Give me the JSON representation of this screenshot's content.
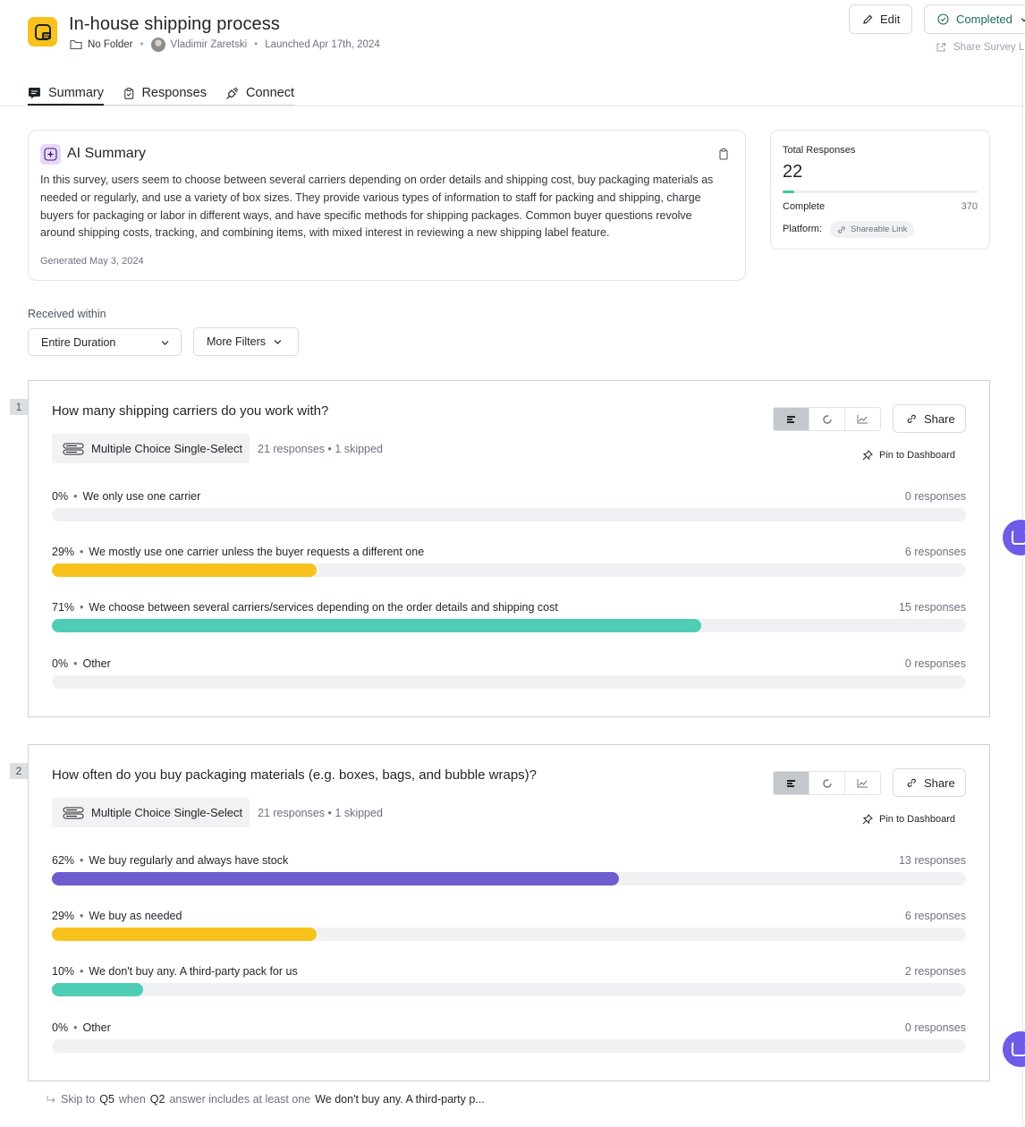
{
  "header": {
    "title": "In-house shipping process",
    "folder": "No Folder",
    "author": "Vladimir Zaretski",
    "launched": "Launched Apr 17th, 2024",
    "edit_label": "Edit",
    "status_label": "Completed",
    "share_survey_label": "Share Survey Li"
  },
  "tabs": [
    {
      "label": "Summary"
    },
    {
      "label": "Responses"
    },
    {
      "label": "Connect"
    }
  ],
  "ai_summary": {
    "title": "AI Summary",
    "text": "In this survey, users seem to choose between several carriers depending on order details and shipping cost, buy packaging materials as needed or regularly, and use a variety of box sizes. They provide various types of information to staff for packing and shipping, charge buyers for packaging or labor in different ways, and have specific methods for shipping packages. Common buyer questions revolve around shipping costs, tracking, and combining items, with mixed interest in reviewing a new shipping label feature.",
    "generated": "Generated May 3, 2024"
  },
  "stats": {
    "total_label": "Total Responses",
    "total_value": "22",
    "complete_label": "Complete",
    "complete_value": "370",
    "progress_fraction": 0.06,
    "platform_label": "Platform:",
    "platform_value": "Shareable Link"
  },
  "filters": {
    "received_label": "Received within",
    "duration_value": "Entire Duration",
    "more_filters_label": "More Filters"
  },
  "questions": [
    {
      "number": "1",
      "title": "How many shipping carriers do you work with?",
      "type": "Multiple Choice Single-Select",
      "responses": "21 responses",
      "skipped": "1 skipped",
      "share_label": "Share",
      "pin_label": "Pin to Dashboard",
      "options": [
        {
          "pct": "0%",
          "label": "We only use one carrier",
          "count": "0 responses",
          "fraction": 0,
          "color": "#f7c21b"
        },
        {
          "pct": "29%",
          "label": "We mostly use one carrier unless the buyer requests a different one",
          "count": "6 responses",
          "fraction": 0.29,
          "color": "#f7c21b"
        },
        {
          "pct": "71%",
          "label": "We choose between several carriers/services depending on the order details and shipping cost",
          "count": "15 responses",
          "fraction": 0.71,
          "color": "#4ecdb4"
        },
        {
          "pct": "0%",
          "label": "Other",
          "count": "0 responses",
          "fraction": 0,
          "color": "#6c5ce7"
        }
      ]
    },
    {
      "number": "2",
      "title": "How often do you buy packaging materials (e.g. boxes, bags, and bubble wraps)?",
      "type": "Multiple Choice Single-Select",
      "responses": "21 responses",
      "skipped": "1 skipped",
      "share_label": "Share",
      "pin_label": "Pin to Dashboard",
      "options": [
        {
          "pct": "62%",
          "label": "We buy regularly and always have stock",
          "count": "13 responses",
          "fraction": 0.62,
          "color": "#6c5ecf"
        },
        {
          "pct": "29%",
          "label": "We buy as needed",
          "count": "6 responses",
          "fraction": 0.29,
          "color": "#f7c21b"
        },
        {
          "pct": "10%",
          "label": "We don't buy any. A third-party pack for us",
          "count": "2 responses",
          "fraction": 0.1,
          "color": "#4ecdb4"
        },
        {
          "pct": "0%",
          "label": "Other",
          "count": "0 responses",
          "fraction": 0,
          "color": "#6c5ce7"
        }
      ]
    }
  ],
  "skip_logic": {
    "prefix": "Skip to",
    "target": "Q5",
    "middle": "when",
    "question": "Q2",
    "condition": "answer includes at least one",
    "answer": "We don't buy any. A third-party p..."
  },
  "colors": {
    "accent_yellow": "#f7c21b",
    "accent_teal": "#4ecdb4",
    "accent_purple": "#6c5ecf"
  }
}
